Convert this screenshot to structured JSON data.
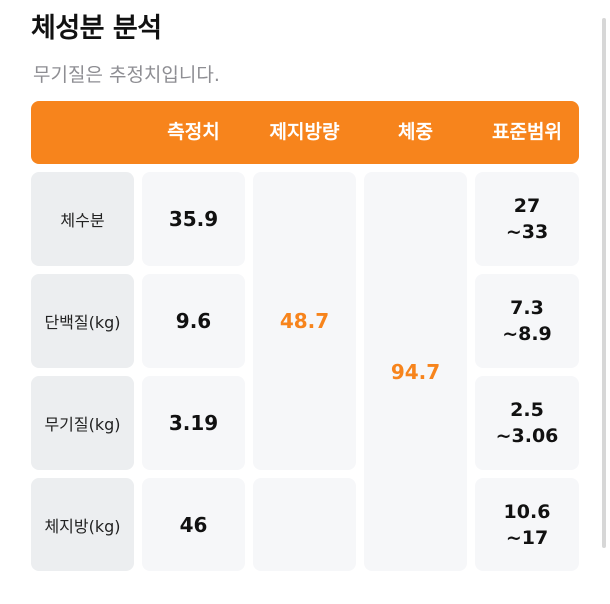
{
  "title": "체성분 분석",
  "subtitle": "무기질은 추정치입니다.",
  "header": {
    "measured": "측정치",
    "lean_mass": "제지방량",
    "weight": "체중",
    "standard_range": "표준범위"
  },
  "rows": [
    {
      "label": "체수분",
      "measured": "35.9",
      "range_low": "27",
      "range_high": "~33"
    },
    {
      "label": "단백질(kg)",
      "measured": "9.6",
      "range_low": "7.3",
      "range_high": "~8.9"
    },
    {
      "label": "무기질(kg)",
      "measured": "3.19",
      "range_low": "2.5",
      "range_high": "~3.06"
    },
    {
      "label": "체지방(kg)",
      "measured": "46",
      "range_low": "10.6",
      "range_high": "~17"
    }
  ],
  "lean_mass_value": "48.7",
  "weight_value": "94.7",
  "colors": {
    "accent": "#f7841c",
    "label_bg": "#eceef0",
    "cell_bg": "#f6f7f9"
  }
}
